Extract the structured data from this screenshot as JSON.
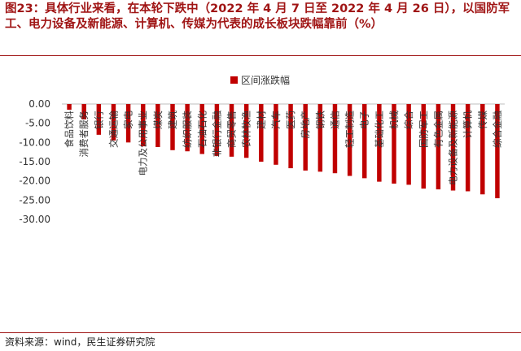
{
  "figure": {
    "title": "图23：具体行业来看，在本轮下跌中（2022 年 4 月 7 日至 2022 年 4 月 26 日），以国防军工、电力设备及新能源、计算机、传媒为代表的成长板块跌幅靠前（%）",
    "source": "资料来源：wind，民生证券研究院"
  },
  "colors": {
    "accent": "#a01515",
    "bar": "#c00000"
  },
  "chart_data": {
    "type": "bar",
    "legend": "区间涨跌幅",
    "legend_position": "top-center",
    "categories": [
      "食品饮料",
      "消费者服务",
      "银行",
      "交通运输",
      "家电",
      "电力及公用事业",
      "煤炭",
      "建筑",
      "纺织服装",
      "石油石化",
      "非银行金融",
      "商贸零售",
      "农林牧渔",
      "建材",
      "汽车",
      "医药",
      "房地产",
      "钢铁",
      "通信",
      "轻工制造",
      "电子",
      "基础化工",
      "机械",
      "综合",
      "国防军工",
      "有色金属",
      "电力设备及新能源",
      "计算机",
      "传媒",
      "综合金融"
    ],
    "series": [
      {
        "name": "区间涨跌幅",
        "values": [
          -1.5,
          -4.0,
          -8.0,
          -9.5,
          -10.0,
          -11.0,
          -11.2,
          -12.0,
          -12.3,
          -13.0,
          -13.5,
          -13.7,
          -14.0,
          -15.0,
          -15.8,
          -16.7,
          -17.3,
          -17.6,
          -18.0,
          -18.7,
          -19.3,
          -20.2,
          -20.7,
          -21.0,
          -22.0,
          -22.2,
          -22.5,
          -22.7,
          -23.5,
          -24.5
        ]
      }
    ],
    "y_ticks": [
      "0.00",
      "-5.00",
      "-10.00",
      "-15.00",
      "-20.00",
      "-25.00",
      "-30.00"
    ],
    "ylim": [
      -30,
      0
    ],
    "grid": false
  }
}
